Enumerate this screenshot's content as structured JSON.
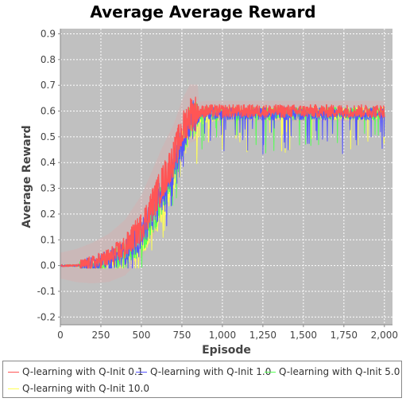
{
  "chart_data": {
    "type": "line",
    "title": "Average Average Reward",
    "xlabel": "Episode",
    "ylabel": "Average Reward",
    "xlim": [
      0,
      2050
    ],
    "ylim": [
      -0.23,
      0.92
    ],
    "x_ticks": [
      0,
      250,
      500,
      750,
      1000,
      1250,
      1500,
      1750,
      2000
    ],
    "x_tick_labels": [
      "0",
      "250",
      "500",
      "750",
      "1,000",
      "1,250",
      "1,500",
      "1,750",
      "2,000"
    ],
    "y_ticks": [
      -0.2,
      -0.1,
      0.0,
      0.1,
      0.2,
      0.3,
      0.4,
      0.5,
      0.6,
      0.7,
      0.8,
      0.9
    ],
    "y_tick_labels": [
      "-0.2",
      "-0.1",
      "0.0",
      "0.1",
      "0.2",
      "0.3",
      "0.4",
      "0.5",
      "0.6",
      "0.7",
      "0.8",
      "0.9"
    ],
    "grid": true,
    "plot_background": "#c0c0c0",
    "legend_position": "bottom",
    "x": [
      0,
      100,
      200,
      300,
      400,
      500,
      600,
      700,
      750,
      800,
      900,
      1000,
      1250,
      1500,
      1750,
      2000
    ],
    "series": [
      {
        "name": "Q-learning with Q-Init 0.1",
        "color": "#ff5555",
        "values": [
          0.0,
          0.0,
          0.01,
          0.03,
          0.07,
          0.15,
          0.28,
          0.42,
          0.52,
          0.59,
          0.6,
          0.6,
          0.6,
          0.6,
          0.6,
          0.6
        ]
      },
      {
        "name": "Q-learning with Q-Init 1.0",
        "color": "#5555ff",
        "values": [
          0.0,
          0.0,
          0.01,
          0.02,
          0.05,
          0.12,
          0.24,
          0.38,
          0.48,
          0.57,
          0.59,
          0.59,
          0.59,
          0.59,
          0.59,
          0.59
        ]
      },
      {
        "name": "Q-learning with Q-Init 5.0",
        "color": "#55ff55",
        "values": [
          0.0,
          0.0,
          0.0,
          0.02,
          0.04,
          0.1,
          0.22,
          0.36,
          0.47,
          0.56,
          0.59,
          0.59,
          0.59,
          0.59,
          0.59,
          0.59
        ]
      },
      {
        "name": "Q-learning with Q-Init 10.0",
        "color": "#ffff55",
        "values": [
          0.0,
          0.0,
          0.0,
          0.01,
          0.03,
          0.09,
          0.2,
          0.34,
          0.45,
          0.55,
          0.58,
          0.59,
          0.59,
          0.59,
          0.59,
          0.59
        ]
      }
    ]
  }
}
